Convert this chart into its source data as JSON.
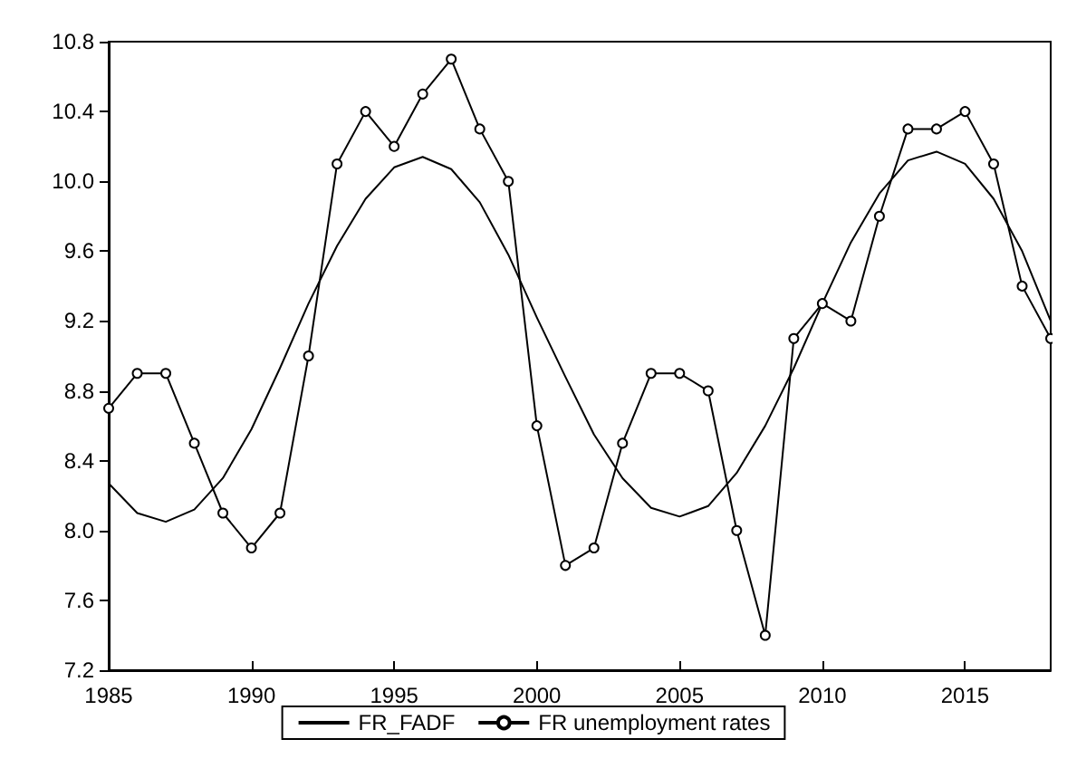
{
  "chart_data": {
    "type": "line",
    "x": [
      1985,
      1986,
      1987,
      1988,
      1989,
      1990,
      1991,
      1992,
      1993,
      1994,
      1995,
      1996,
      1997,
      1998,
      1999,
      2000,
      2001,
      2002,
      2003,
      2004,
      2005,
      2006,
      2007,
      2008,
      2009,
      2010,
      2011,
      2012,
      2013,
      2014,
      2015,
      2016,
      2017,
      2018
    ],
    "series": [
      {
        "name": "FR_FADF",
        "color": "#000000",
        "marker": "none",
        "values": [
          8.27,
          8.1,
          8.05,
          8.12,
          8.3,
          8.58,
          8.93,
          9.3,
          9.63,
          9.9,
          10.08,
          10.14,
          10.07,
          9.88,
          9.58,
          9.22,
          8.88,
          8.55,
          8.3,
          8.13,
          8.08,
          8.14,
          8.33,
          8.6,
          8.93,
          9.3,
          9.65,
          9.93,
          10.12,
          10.17,
          10.1,
          9.9,
          9.6,
          9.2
        ]
      },
      {
        "name": "FR unemployment rates",
        "color": "#000000",
        "marker": "circle",
        "values": [
          8.7,
          8.9,
          8.9,
          8.5,
          8.1,
          7.9,
          8.1,
          9.0,
          10.1,
          10.4,
          10.2,
          10.5,
          10.7,
          10.3,
          10.0,
          8.6,
          7.8,
          7.9,
          8.5,
          8.9,
          8.9,
          8.8,
          8.0,
          7.4,
          9.1,
          9.3,
          9.2,
          9.8,
          10.3,
          10.3,
          10.4,
          10.1,
          9.4,
          9.1
        ]
      }
    ],
    "xlim": [
      1985,
      2018
    ],
    "xticks": [
      1985,
      1990,
      1995,
      2000,
      2005,
      2010,
      2015
    ],
    "ylim": [
      7.2,
      10.8
    ],
    "yticks": [
      {
        "value": 7.2,
        "label": "7.2"
      },
      7.6,
      {
        "value": 8.0,
        "label": "8.0"
      },
      8.4,
      8.8,
      9.2,
      9.6,
      {
        "value": 10.0,
        "label": "10.0"
      },
      10.4,
      10.8
    ],
    "grid": false,
    "legend": "bottom",
    "line_style": "solid"
  }
}
